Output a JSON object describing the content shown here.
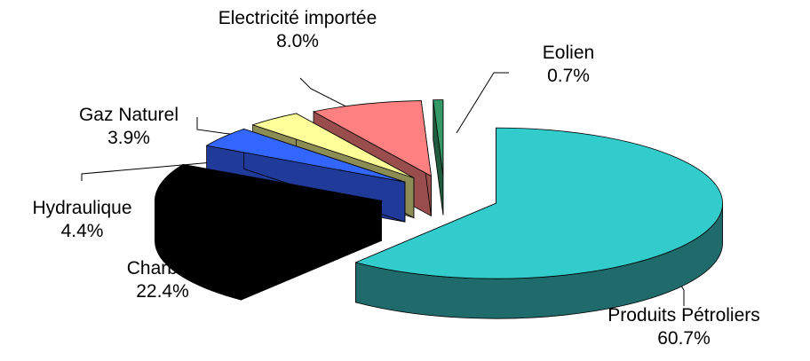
{
  "chart_data": {
    "type": "pie",
    "title": "",
    "style": "3d-exploded",
    "slices": [
      {
        "label": "Produits Pétroliers",
        "value": 60.7,
        "pct": "60.7%",
        "color": "#33CCCC",
        "side": "#1F6B6B"
      },
      {
        "label": "Charbon",
        "value": 22.4,
        "pct": "22.4%",
        "color": "#000000",
        "side": "#000000"
      },
      {
        "label": "Hydraulique",
        "value": 4.4,
        "pct": "4.4%",
        "color": "#3366FF",
        "side": "#1F3A99"
      },
      {
        "label": "Gaz Naturel",
        "value": 3.9,
        "pct": "3.9%",
        "color": "#FFFF99",
        "side": "#8C8C55"
      },
      {
        "label": "Electricité importée",
        "value": 8.0,
        "pct": "8.0%",
        "color": "#FF8080",
        "side": "#994D4D"
      },
      {
        "label": "Eolien",
        "value": 0.7,
        "pct": "0.7%",
        "color": "#339966",
        "side": "#1F5C3D"
      }
    ]
  }
}
